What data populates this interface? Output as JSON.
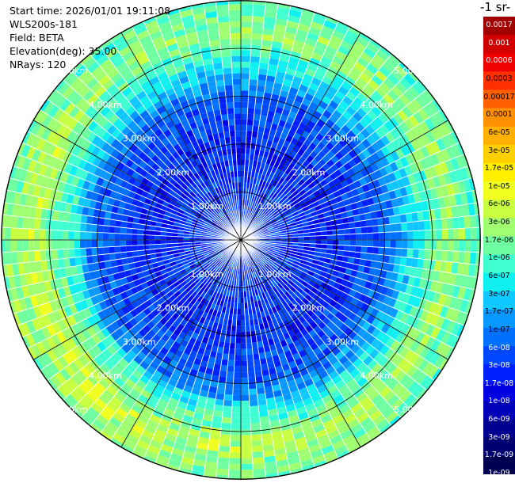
{
  "info": {
    "start_time": "Start time: 2026/01/01 19:11:08",
    "station": "WLS200s-181",
    "field": "Field: BETA",
    "elevation": "Elevation(deg): 35.00",
    "nrays": "NRays: 120"
  },
  "colorbar": {
    "title": "-1 sr-",
    "labels": [
      "0.0017",
      "0.001",
      "0.0006",
      "0.0003",
      "0.00017",
      "0.0001",
      "6e-05",
      "3e-05",
      "1.7e-05",
      "1e-05",
      "6e-06",
      "3e-06",
      "1.7e-06",
      "1e-06",
      "6e-07",
      "3e-07",
      "1.7e-07",
      "1e-07",
      "6e-08",
      "3e-08",
      "1.7e-08",
      "1e-08",
      "6e-09",
      "3e-09",
      "1.7e-09",
      "1e-09"
    ],
    "colors": [
      "#a00000",
      "#d00000",
      "#f00000",
      "#ff3000",
      "#ff6000",
      "#ff9000",
      "#ffb000",
      "#ffd000",
      "#fff000",
      "#f0ff20",
      "#c8ff40",
      "#a0ff70",
      "#70ffa0",
      "#40ffd0",
      "#10f0f0",
      "#10c8ff",
      "#0898ff",
      "#0070ff",
      "#0048ff",
      "#0020ff",
      "#0000e0",
      "#0000b8",
      "#000090",
      "#000070",
      "#000050"
    ]
  },
  "ring_labels": [
    "1.00km",
    "2.00km",
    "3.00km",
    "4.00km",
    "5.00km"
  ],
  "chart_data": {
    "type": "heatmap",
    "projection": "polar PPI",
    "nrays": 120,
    "elevation_deg": 35.0,
    "range_rings_km": [
      1,
      2,
      3,
      4,
      5
    ],
    "max_range_km": 5.9,
    "gate_profile": {
      "range_km": [
        0.0,
        1.0,
        2.0,
        3.0,
        3.6,
        4.3,
        5.0,
        5.6
      ],
      "beta": [
        3e-08,
        2.5e-08,
        2e-08,
        5e-08,
        3e-07,
        2e-06,
        7e-07,
        3e-07
      ]
    },
    "angular_modulation": {
      "note": "enhanced backscatter band at 3.5-5 km on the west and south-west sides",
      "azimuth_deg": [
        0,
        90,
        180,
        225,
        270,
        315
      ],
      "factor": [
        1.0,
        1.2,
        1.6,
        2.5,
        2.2,
        1.3
      ]
    },
    "colorbar_range": [
      1e-09,
      0.0017
    ],
    "scale": "log"
  }
}
